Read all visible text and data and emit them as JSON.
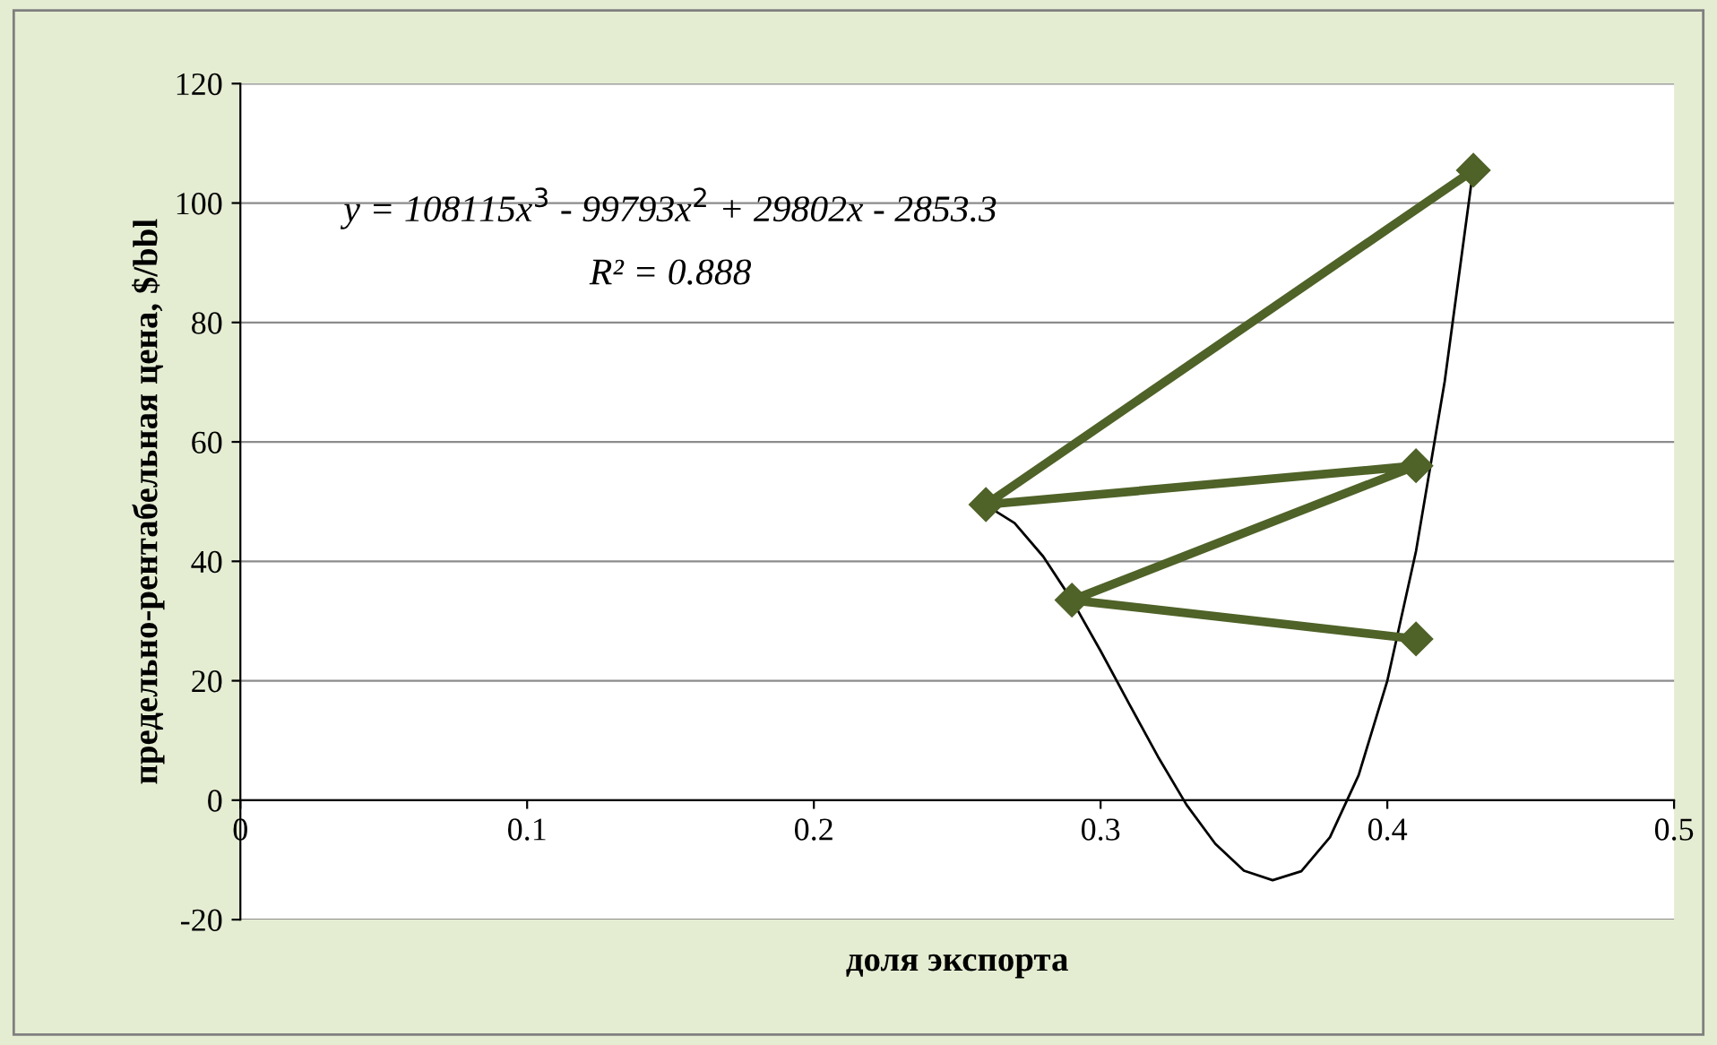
{
  "chart_data": {
    "type": "line",
    "xlabel": "доля экспорта",
    "ylabel": "предельно-рентабельная цена, $/bbl",
    "xlim": [
      0,
      0.5
    ],
    "xticks": [
      0,
      0.1,
      0.2,
      0.3,
      0.4,
      0.5
    ],
    "ylim": [
      -20,
      120
    ],
    "yticks": [
      -20,
      0,
      20,
      40,
      60,
      80,
      100,
      120
    ],
    "grid": "y",
    "legend": false,
    "annotations": [
      "y = 108115x$^{3}$ - 99793x$^{2}$ + 29802x - 2853.3",
      "R² = 0.888"
    ],
    "series": [
      {
        "color": "#4f6228",
        "marker": "diamond",
        "line_style": "solid",
        "x": [
          0.43,
          0.26,
          0.41,
          0.29,
          0.41
        ],
        "values": [
          105.5,
          49.5,
          56,
          33.5,
          27
        ]
      },
      {
        "color": "#000000",
        "marker": "none",
        "line_style": "solid",
        "x": [
          0.26,
          0.27,
          0.28,
          0.29,
          0.3,
          0.31,
          0.32,
          0.33,
          0.34,
          0.35,
          0.36,
          0.37,
          0.38,
          0.39,
          0.4,
          0.41,
          0.42,
          0.43
        ],
        "values": [
          49.4,
          46.4,
          40.8,
          33.5,
          25.0,
          16.1,
          7.3,
          -0.8,
          -7.3,
          -11.8,
          -13.4,
          -11.9,
          -6.2,
          4.2,
          20.0,
          41.7,
          70.1,
          105.8
        ]
      }
    ]
  }
}
